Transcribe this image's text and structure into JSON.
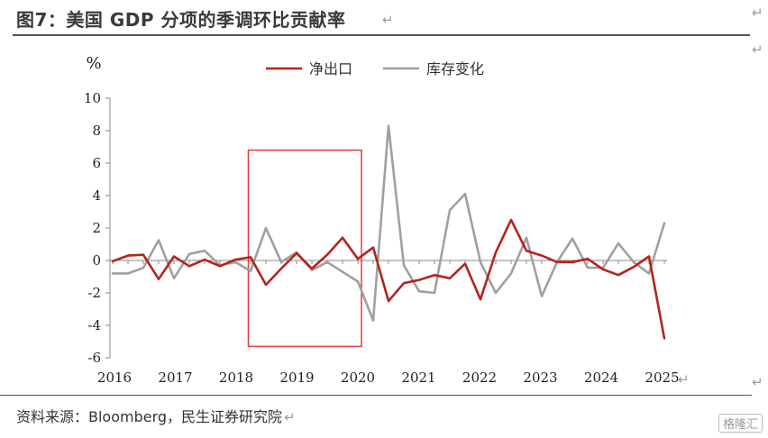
{
  "header": {
    "title": "图7：美国 GDP 分项的季调环比贡献率"
  },
  "footer": {
    "source": "资料来源：Bloomberg，民生证券研究院",
    "badge": "格隆汇"
  },
  "colors": {
    "net_exports": "#b5231f",
    "inventory": "#a0a0a0",
    "highlight": "#e03a3a"
  },
  "chart_data": {
    "type": "line",
    "ylabel": "%",
    "ylim": [
      -6,
      10
    ],
    "yticks": [
      -6,
      -4,
      -2,
      0,
      2,
      4,
      6,
      8,
      10
    ],
    "x_tick_labels": [
      "2016",
      "2017",
      "2018",
      "2019",
      "2020",
      "2021",
      "2022",
      "2023",
      "2024",
      "2025"
    ],
    "legend_position": "top-center",
    "grid": false,
    "highlight_quarters": [
      9,
      16
    ],
    "series": [
      {
        "name": "净出口",
        "color": "#b5231f",
        "values": [
          -0.05,
          0.3,
          0.35,
          -1.15,
          0.25,
          -0.35,
          0.05,
          -0.35,
          0.05,
          0.2,
          -1.5,
          -0.5,
          0.45,
          -0.5,
          0.35,
          1.4,
          0.1,
          0.8,
          -2.5,
          -1.4,
          -1.2,
          -0.9,
          -1.1,
          -0.2,
          -2.4,
          0.5,
          2.5,
          0.6,
          0.3,
          -0.1,
          -0.1,
          0.1,
          -0.55,
          -0.9,
          -0.4,
          0.25,
          -4.8
        ]
      },
      {
        "name": "库存变化",
        "color": "#a0a0a0",
        "values": [
          -0.8,
          -0.8,
          -0.45,
          1.25,
          -1.1,
          0.4,
          0.6,
          -0.3,
          -0.1,
          -0.65,
          2.0,
          -0.1,
          0.5,
          -0.6,
          -0.1,
          -0.7,
          -1.3,
          -3.7,
          8.3,
          -0.3,
          -1.9,
          -2.0,
          3.1,
          4.1,
          -0.1,
          -2.0,
          -0.8,
          1.4,
          -2.2,
          -0.1,
          1.35,
          -0.45,
          -0.45,
          1.05,
          -0.1,
          -0.8,
          2.3
        ]
      }
    ]
  }
}
